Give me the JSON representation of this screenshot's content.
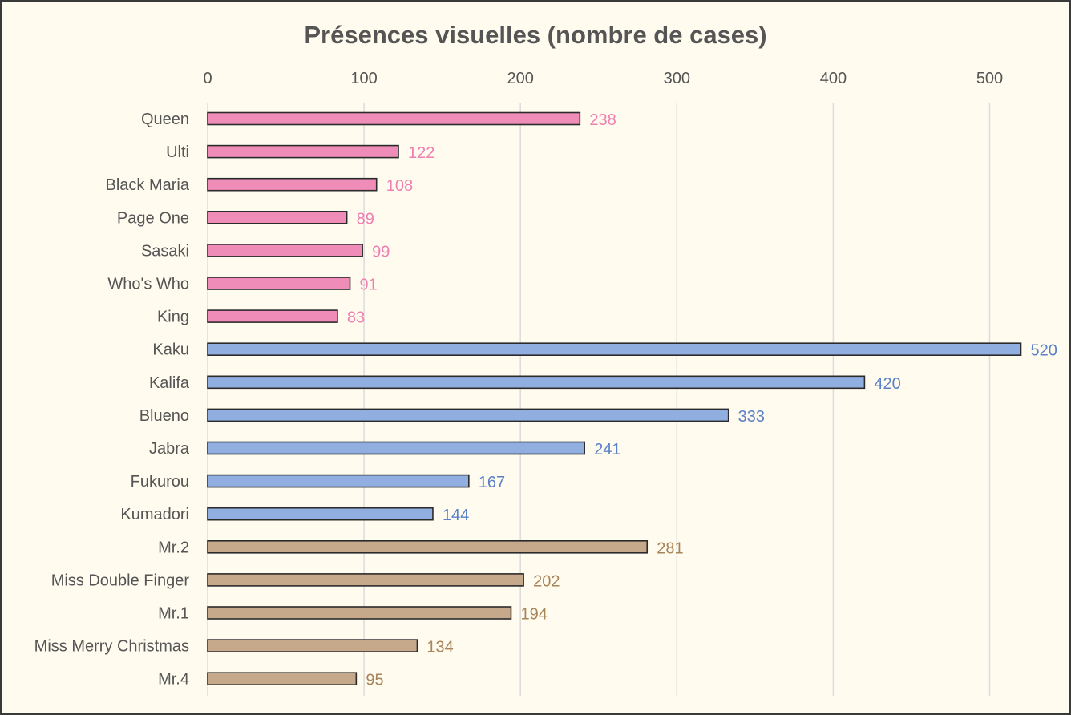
{
  "chart_data": {
    "type": "bar",
    "orientation": "horizontal",
    "title": "Présences visuelles (nombre de cases)",
    "xlim": [
      0,
      540
    ],
    "ticks": [
      0,
      100,
      200,
      300,
      400,
      500
    ],
    "tick_labels": [
      "0",
      "100",
      "200",
      "300",
      "400",
      "500"
    ],
    "grid": true,
    "axis_position": "top",
    "categories": [
      "Queen",
      "Ulti",
      "Black Maria",
      "Page One",
      "Sasaki",
      "Who's Who",
      "King",
      "Kaku",
      "Kalifa",
      "Blueno",
      "Jabra",
      "Fukurou",
      "Kumadori",
      "Mr.2",
      "Miss Double Finger",
      "Mr.1",
      "Miss Merry Christmas",
      "Mr.4"
    ],
    "values": [
      238,
      122,
      108,
      89,
      99,
      91,
      83,
      520,
      420,
      333,
      241,
      167,
      144,
      281,
      202,
      194,
      134,
      95
    ],
    "value_labels": [
      "238",
      "122",
      "108",
      "89",
      "99",
      "91",
      "83",
      "520",
      "420",
      "333",
      "241",
      "167",
      "144",
      "281",
      "202",
      "194",
      "134",
      "95"
    ],
    "groups": [
      0,
      0,
      0,
      0,
      0,
      0,
      0,
      1,
      1,
      1,
      1,
      1,
      1,
      2,
      2,
      2,
      2,
      2
    ],
    "group_colors": [
      {
        "fill": "#ef8db8",
        "label": "#ef7fb0"
      },
      {
        "fill": "#90aee0",
        "label": "#5b80c8"
      },
      {
        "fill": "#c6a98a",
        "label": "#a88458"
      }
    ]
  }
}
